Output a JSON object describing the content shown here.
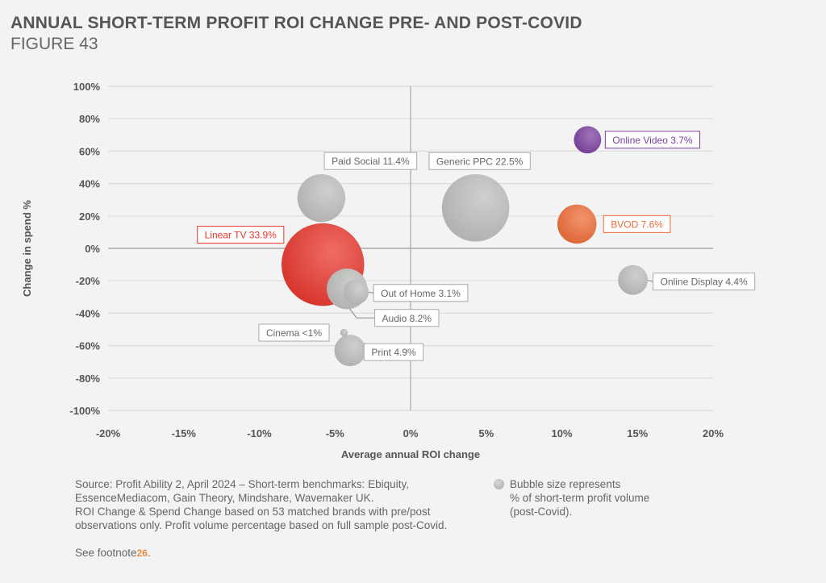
{
  "header": {
    "title": "ANNUAL SHORT-TERM PROFIT ROI CHANGE PRE- AND POST-COVID",
    "figure": "FIGURE 43"
  },
  "chart_data": {
    "type": "scatter",
    "subtype": "bubble",
    "title": "ANNUAL SHORT-TERM PROFIT ROI CHANGE PRE- AND POST-COVID",
    "xlabel": "Average annual ROI change",
    "ylabel": "Change in spend %",
    "xlim": [
      -20,
      20
    ],
    "ylim": [
      -100,
      100
    ],
    "x_ticks": [
      "-20%",
      "-15%",
      "-10%",
      "-5%",
      "0%",
      "5%",
      "10%",
      "15%",
      "20%"
    ],
    "y_ticks": [
      "100%",
      "80%",
      "60%",
      "40%",
      "20%",
      "0%",
      "-20%",
      "-40%",
      "-60%",
      "-80%",
      "-100%"
    ],
    "grid": "horizontal",
    "points": [
      {
        "name": "Online Video",
        "label": "Online Video 3.7%",
        "x": 11.7,
        "y": 67,
        "size": 3.7,
        "color": "#7b3fa0",
        "label_color": "#7b3fa0"
      },
      {
        "name": "Generic PPC",
        "label": "Generic PPC 22.5%",
        "x": 4.3,
        "y": 25,
        "size": 22.5,
        "color": "#bdbdbb",
        "label_color": "#666666"
      },
      {
        "name": "BVOD",
        "label": "BVOD 7.6%",
        "x": 11.0,
        "y": 15,
        "size": 7.6,
        "color": "#ee6a35",
        "label_color": "#ee6a35"
      },
      {
        "name": "Online Display",
        "label": "Online Display 4.4%",
        "x": 14.7,
        "y": -19.5,
        "size": 4.4,
        "color": "#bdbdbb",
        "label_color": "#666666"
      },
      {
        "name": "Paid Social",
        "label": "Paid Social 11.4%",
        "x": -5.9,
        "y": 31,
        "size": 11.4,
        "color": "#bdbdbb",
        "label_color": "#666666"
      },
      {
        "name": "Linear TV",
        "label": "Linear TV 33.9%",
        "x": -5.8,
        "y": -10,
        "size": 33.9,
        "color": "#e8342a",
        "label_color": "#e8342a"
      },
      {
        "name": "Audio",
        "label": "Audio 8.2%",
        "x": -4.2,
        "y": -25,
        "size": 8.2,
        "color": "#bdbdbb",
        "label_color": "#666666"
      },
      {
        "name": "Out of Home",
        "label": "Out of Home 3.1%",
        "x": -3.6,
        "y": -27,
        "size": 3.1,
        "color": "#bdbdbb",
        "label_color": "#666666"
      },
      {
        "name": "Cinema",
        "label": "Cinema <1%",
        "x": -4.4,
        "y": -52,
        "size": 0.3,
        "color": "#bdbdbb",
        "label_color": "#666666"
      },
      {
        "name": "Print",
        "label": "Print 4.9%",
        "x": -4.0,
        "y": -63,
        "size": 4.9,
        "color": "#bdbdbb",
        "label_color": "#666666"
      }
    ],
    "legend": "Bubble size represents % of short-term profit volume (post-Covid)."
  },
  "notes": {
    "source_lines": [
      "Source: Profit Ability 2, April 2024 – Short-term benchmarks: Ebiquity,",
      "EssenceMediacom, Gain Theory, Mindshare, Wavemaker UK.",
      "ROI Change & Spend Change based on 53 matched brands with pre/post",
      "observations only. Profit volume percentage based on full sample post-Covid."
    ],
    "footnote_prefix": "See footnote",
    "footnote_number": "26",
    "footnote_suffix": ".",
    "legend_lines": [
      "Bubble size represents",
      "% of short-term profit volume",
      "(post-Covid)."
    ]
  }
}
